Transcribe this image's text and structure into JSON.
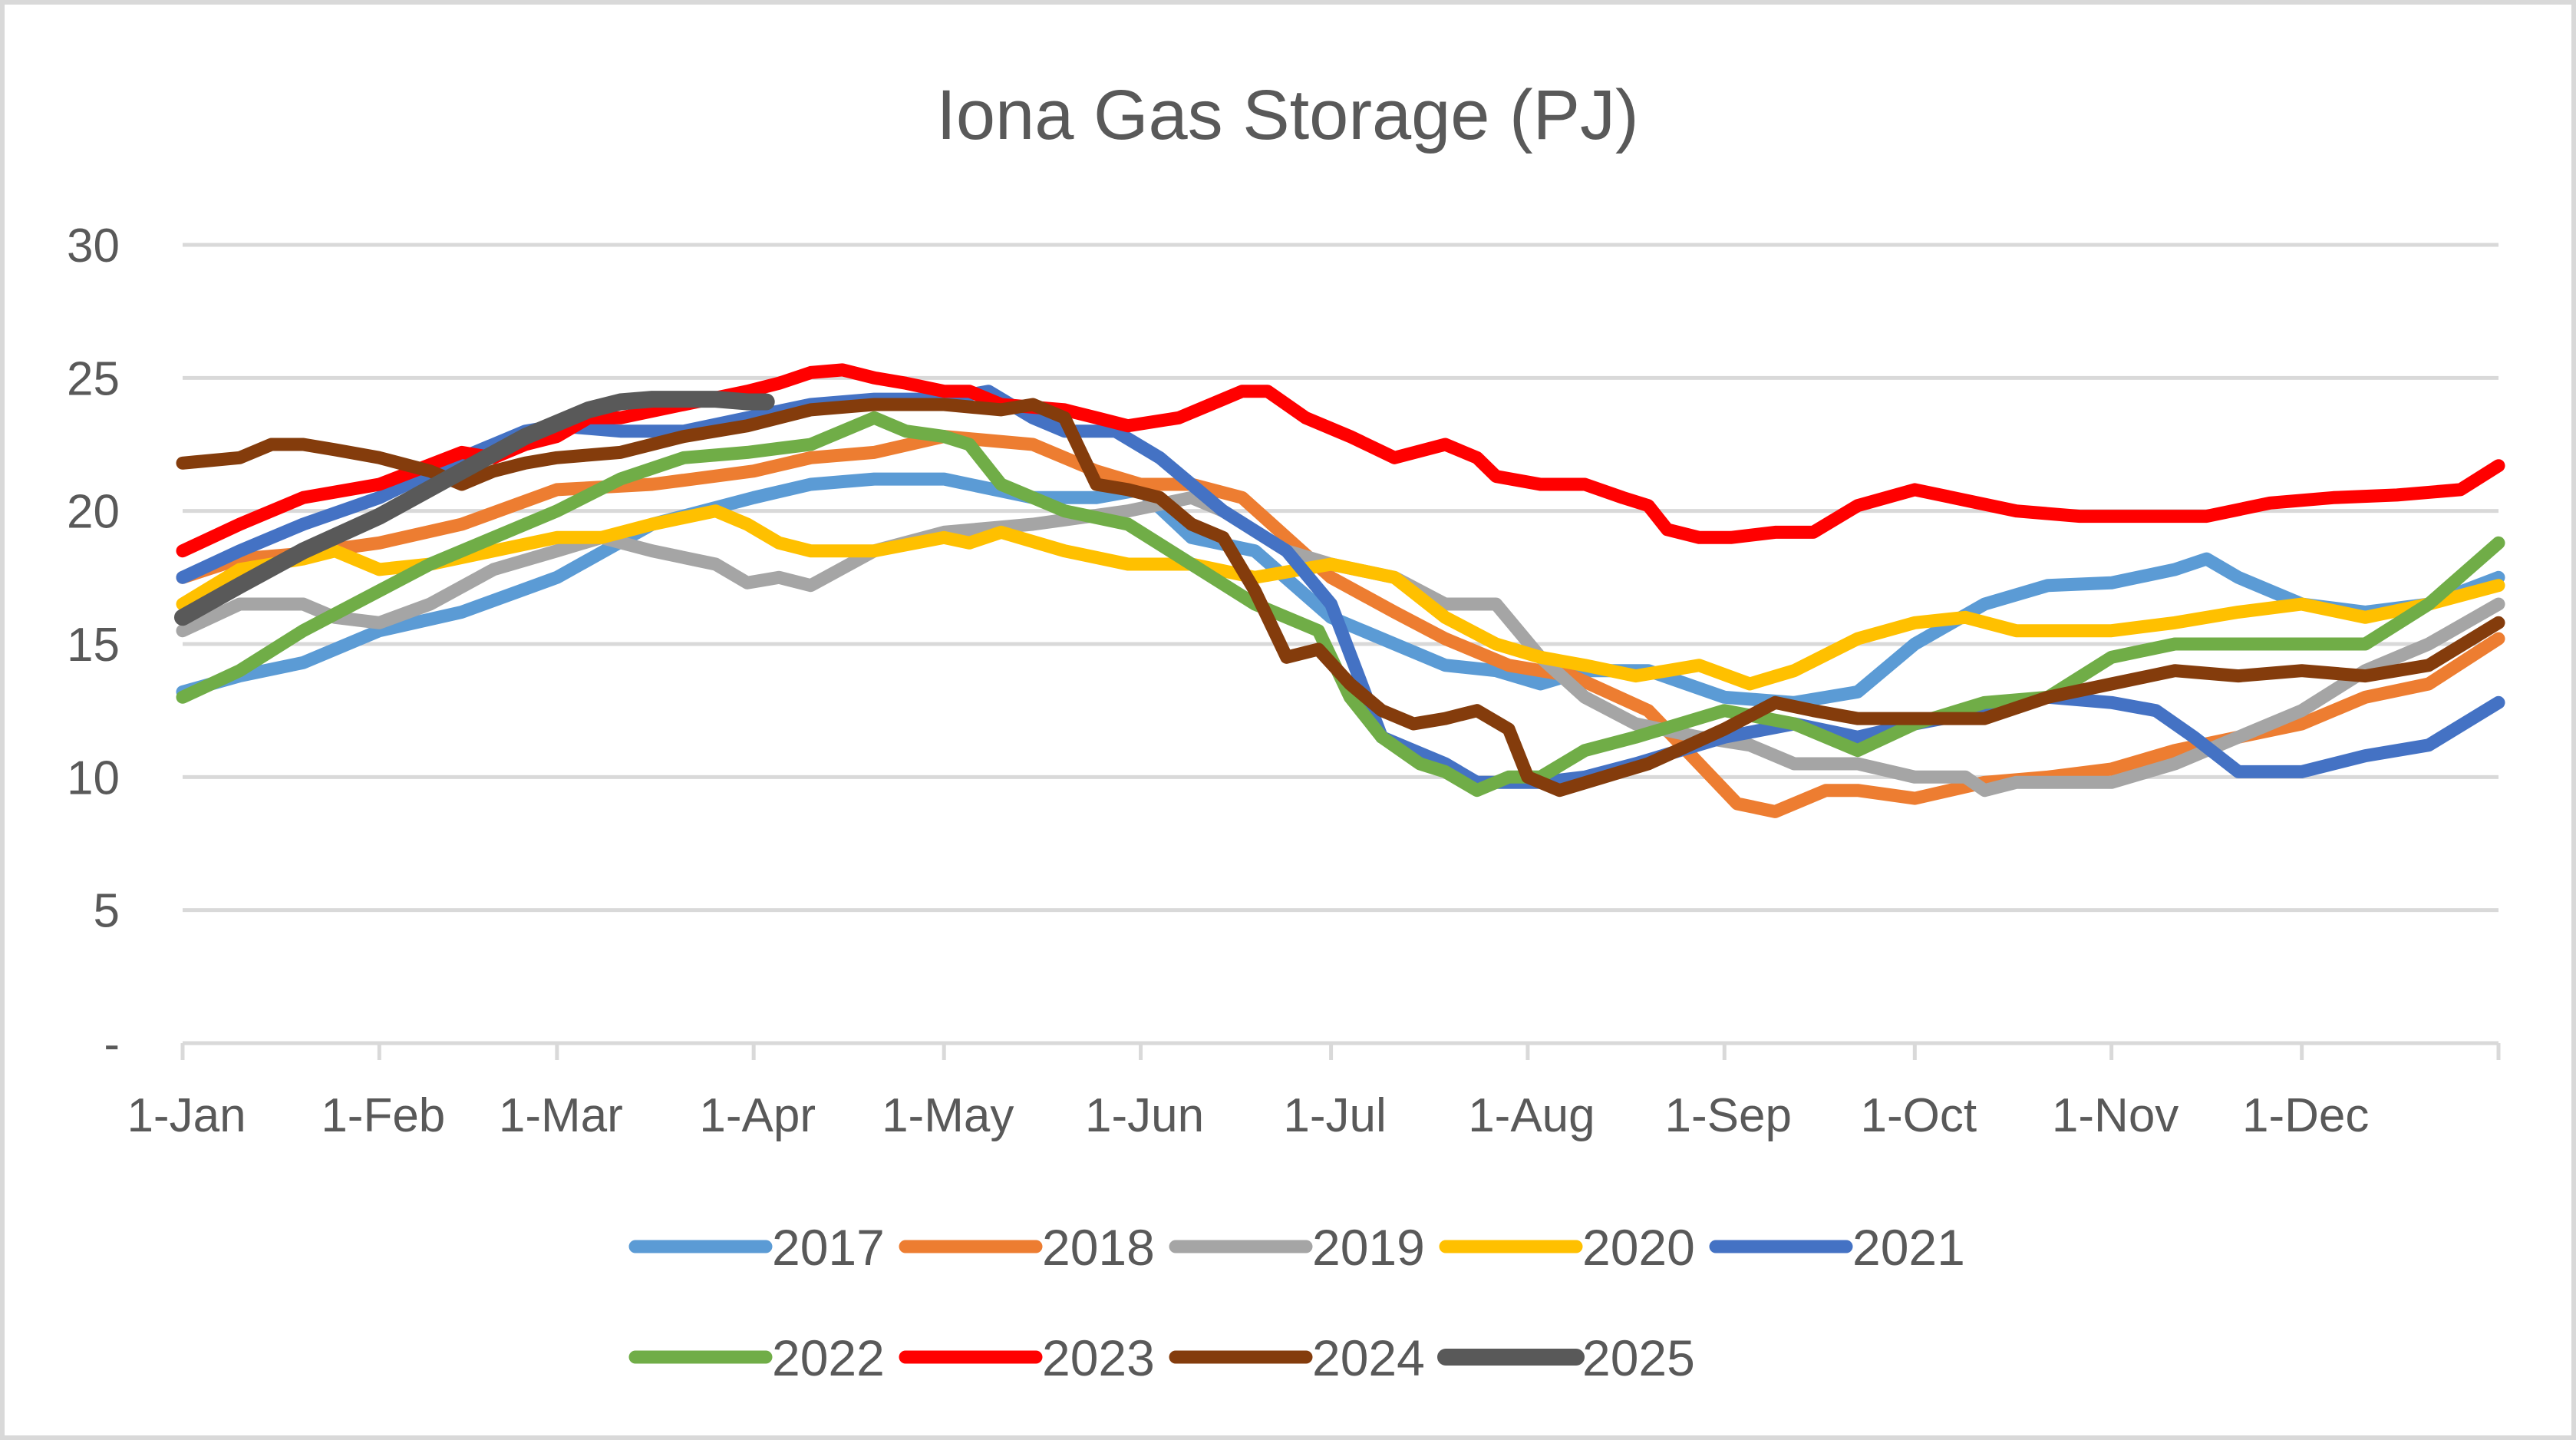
{
  "chart_data": {
    "type": "line",
    "title": "Iona Gas Storage (PJ)",
    "xlabel": "",
    "ylabel": "",
    "ylim": [
      0,
      30
    ],
    "yticks": [
      {
        "value": 0,
        "label": "-"
      },
      {
        "value": 5,
        "label": "5"
      },
      {
        "value": 10,
        "label": "10"
      },
      {
        "value": 15,
        "label": "15"
      },
      {
        "value": 20,
        "label": "20"
      },
      {
        "value": 25,
        "label": "25"
      },
      {
        "value": 30,
        "label": "30"
      }
    ],
    "xlim": [
      1,
      366
    ],
    "xticks": [
      {
        "day": 1,
        "label": "1-Jan"
      },
      {
        "day": 32,
        "label": "1-Feb"
      },
      {
        "day": 60,
        "label": "1-Mar"
      },
      {
        "day": 91,
        "label": "1-Apr"
      },
      {
        "day": 121,
        "label": "1-May"
      },
      {
        "day": 152,
        "label": "1-Jun"
      },
      {
        "day": 182,
        "label": "1-Jul"
      },
      {
        "day": 213,
        "label": "1-Aug"
      },
      {
        "day": 244,
        "label": "1-Sep"
      },
      {
        "day": 274,
        "label": "1-Oct"
      },
      {
        "day": 305,
        "label": "1-Nov"
      },
      {
        "day": 335,
        "label": "1-Dec"
      }
    ],
    "grid": true,
    "legend_position": "bottom",
    "series": [
      {
        "name": "2017",
        "color": "#5b9bd5",
        "x": [
          1,
          10,
          20,
          32,
          45,
          60,
          75,
          91,
          100,
          110,
          121,
          135,
          145,
          152,
          160,
          170,
          182,
          192,
          200,
          208,
          215,
          222,
          232,
          244,
          255,
          265,
          274,
          285,
          295,
          305,
          315,
          320,
          325,
          335,
          345,
          355,
          366
        ],
        "y": [
          13.2,
          13.8,
          14.3,
          15.5,
          16.2,
          17.5,
          19.5,
          20.5,
          21,
          21.2,
          21.2,
          20.5,
          20.5,
          20.8,
          19,
          18.5,
          16,
          15,
          14.2,
          14,
          13.5,
          14,
          14,
          13,
          12.8,
          13.2,
          15,
          16.5,
          17.2,
          17.3,
          17.8,
          18.2,
          17.5,
          16.5,
          16.2,
          16.5,
          17.5
        ]
      },
      {
        "name": "2018",
        "color": "#ed7d31",
        "x": [
          1,
          10,
          20,
          32,
          45,
          60,
          75,
          91,
          100,
          110,
          121,
          135,
          145,
          152,
          160,
          168,
          175,
          182,
          192,
          200,
          210,
          220,
          232,
          240,
          246,
          252,
          260,
          265,
          274,
          285,
          295,
          305,
          315,
          325,
          335,
          345,
          355,
          366
        ],
        "y": [
          17.5,
          18.2,
          18.4,
          18.8,
          19.5,
          20.8,
          21,
          21.5,
          22,
          22.2,
          22.8,
          22.5,
          21.5,
          21,
          21,
          20.5,
          19,
          17.5,
          16.2,
          15.2,
          14.2,
          13.8,
          12.5,
          10.5,
          9,
          8.7,
          9.5,
          9.5,
          9.2,
          9.8,
          10,
          10.3,
          11,
          11.5,
          12,
          13,
          13.5,
          15.2
        ]
      },
      {
        "name": "2019",
        "color": "#a5a5a5",
        "x": [
          1,
          10,
          20,
          25,
          32,
          40,
          50,
          60,
          67,
          75,
          85,
          90,
          95,
          100,
          110,
          121,
          135,
          150,
          160,
          165,
          175,
          182,
          192,
          200,
          208,
          215,
          222,
          230,
          240,
          248,
          255,
          265,
          274,
          282,
          285,
          290,
          300,
          305,
          315,
          325,
          335,
          345,
          355,
          366
        ],
        "y": [
          15.5,
          16.5,
          16.5,
          16,
          15.8,
          16.5,
          17.8,
          18.5,
          19,
          18.5,
          18,
          17.3,
          17.5,
          17.2,
          18.5,
          19.2,
          19.5,
          20,
          20.5,
          20,
          18.5,
          18,
          17.5,
          16.5,
          16.5,
          14.5,
          13,
          12,
          11.5,
          11.2,
          10.5,
          10.5,
          10,
          10,
          9.5,
          9.8,
          9.8,
          9.8,
          10.5,
          11.5,
          12.5,
          14,
          15,
          16.5
        ]
      },
      {
        "name": "2020",
        "color": "#ffc000",
        "x": [
          1,
          10,
          20,
          25,
          32,
          40,
          50,
          60,
          67,
          75,
          85,
          90,
          95,
          100,
          110,
          121,
          125,
          130,
          140,
          150,
          160,
          170,
          182,
          192,
          200,
          208,
          215,
          222,
          230,
          235,
          240,
          248,
          255,
          265,
          274,
          282,
          290,
          300,
          305,
          315,
          325,
          335,
          345,
          355,
          366
        ],
        "y": [
          16.5,
          17.8,
          18.2,
          18.5,
          17.8,
          18,
          18.5,
          19,
          19,
          19.5,
          20,
          19.5,
          18.8,
          18.5,
          18.5,
          19,
          18.8,
          19.2,
          18.5,
          18,
          18,
          17.5,
          18,
          17.5,
          16,
          15,
          14.5,
          14.2,
          13.8,
          14,
          14.2,
          13.5,
          14,
          15.2,
          15.8,
          16,
          15.5,
          15.5,
          15.5,
          15.8,
          16.2,
          16.5,
          16,
          16.5,
          17.2
        ]
      },
      {
        "name": "2021",
        "color": "#4472c4",
        "x": [
          1,
          10,
          20,
          32,
          45,
          55,
          60,
          70,
          80,
          90,
          100,
          110,
          121,
          128,
          135,
          140,
          148,
          155,
          165,
          175,
          182,
          190,
          195,
          200,
          205,
          210,
          215,
          222,
          230,
          244,
          255,
          265,
          274,
          285,
          295,
          305,
          312,
          318,
          325,
          335,
          345,
          355,
          366
        ],
        "y": [
          17.5,
          18.5,
          19.5,
          20.5,
          22,
          23,
          23.2,
          23,
          23,
          23.5,
          24,
          24.2,
          24.2,
          24.5,
          23.5,
          23,
          23,
          22,
          20,
          18.5,
          16.5,
          11.5,
          11,
          10.5,
          9.8,
          9.8,
          9.8,
          10,
          10.5,
          11.5,
          12,
          11.5,
          12,
          12.5,
          13,
          12.8,
          12.5,
          11.5,
          10.2,
          10.2,
          10.8,
          11.2,
          12.8
        ]
      },
      {
        "name": "2022",
        "color": "#70ad47",
        "x": [
          1,
          10,
          20,
          32,
          40,
          50,
          60,
          70,
          80,
          90,
          100,
          110,
          115,
          121,
          125,
          130,
          135,
          140,
          150,
          160,
          170,
          180,
          185,
          190,
          196,
          200,
          205,
          210,
          215,
          222,
          230,
          244,
          255,
          265,
          274,
          285,
          295,
          305,
          315,
          325,
          335,
          345,
          355,
          366
        ],
        "y": [
          13,
          14,
          15.5,
          17,
          18,
          19,
          20,
          21.2,
          22,
          22.2,
          22.5,
          23.5,
          23,
          22.8,
          22.5,
          21,
          20.5,
          20,
          19.5,
          18,
          16.5,
          15.5,
          13,
          11.5,
          10.5,
          10.2,
          9.5,
          10,
          10,
          11,
          11.5,
          12.5,
          12,
          11,
          12,
          12.8,
          13,
          14.5,
          15,
          15,
          15,
          15,
          16.5,
          18.8
        ]
      },
      {
        "name": "2023",
        "color": "#ff0000",
        "x": [
          1,
          10,
          20,
          32,
          45,
          50,
          55,
          60,
          65,
          70,
          80,
          90,
          95,
          100,
          105,
          110,
          115,
          121,
          125,
          130,
          140,
          145,
          150,
          158,
          165,
          168,
          172,
          178,
          185,
          192,
          200,
          205,
          208,
          215,
          222,
          228,
          232,
          235,
          240,
          245,
          252,
          258,
          265,
          274,
          280,
          290,
          300,
          310,
          320,
          330,
          340,
          350,
          360,
          366
        ],
        "y": [
          18.5,
          19.5,
          20.5,
          21,
          22.2,
          22,
          22.5,
          22.8,
          23.5,
          23.5,
          24,
          24.5,
          24.8,
          25.2,
          25.3,
          25,
          24.8,
          24.5,
          24.5,
          24,
          23.8,
          23.5,
          23.2,
          23.5,
          24.2,
          24.5,
          24.5,
          23.5,
          22.8,
          22,
          22.5,
          22,
          21.3,
          21,
          21,
          20.5,
          20.2,
          19.3,
          19,
          19,
          19.2,
          19.2,
          20.2,
          20.8,
          20.5,
          20,
          19.8,
          19.8,
          19.8,
          20.3,
          20.5,
          20.6,
          20.8,
          21.7
        ]
      },
      {
        "name": "2024",
        "color": "#843c0c",
        "x": [
          1,
          10,
          15,
          20,
          25,
          32,
          40,
          45,
          50,
          55,
          60,
          70,
          80,
          90,
          100,
          110,
          121,
          130,
          135,
          140,
          145,
          150,
          155,
          160,
          165,
          170,
          175,
          180,
          185,
          190,
          195,
          200,
          205,
          210,
          213,
          218,
          225,
          232,
          244,
          252,
          258,
          265,
          274,
          285,
          295,
          305,
          315,
          325,
          335,
          345,
          355,
          366
        ],
        "y": [
          21.8,
          22,
          22.5,
          22.5,
          22.3,
          22,
          21.5,
          21,
          21.5,
          21.8,
          22,
          22.2,
          22.8,
          23.2,
          23.8,
          24,
          24,
          23.8,
          24,
          23.5,
          21,
          20.8,
          20.5,
          19.5,
          19,
          17,
          14.5,
          14.8,
          13.5,
          12.5,
          12,
          12.2,
          12.5,
          11.8,
          10,
          9.5,
          10,
          10.5,
          11.8,
          12.8,
          12.5,
          12.2,
          12.2,
          12.2,
          13,
          13.5,
          14,
          13.8,
          14,
          13.8,
          14.2,
          15.8
        ]
      },
      {
        "name": "2025",
        "color": "#595959",
        "x": [
          1,
          10,
          20,
          32,
          45,
          55,
          65,
          70,
          75,
          80,
          85,
          90,
          93
        ],
        "y": [
          16,
          17.2,
          18.5,
          19.8,
          21.5,
          22.8,
          23.8,
          24.1,
          24.2,
          24.2,
          24.2,
          24.1,
          24.1
        ]
      }
    ]
  }
}
